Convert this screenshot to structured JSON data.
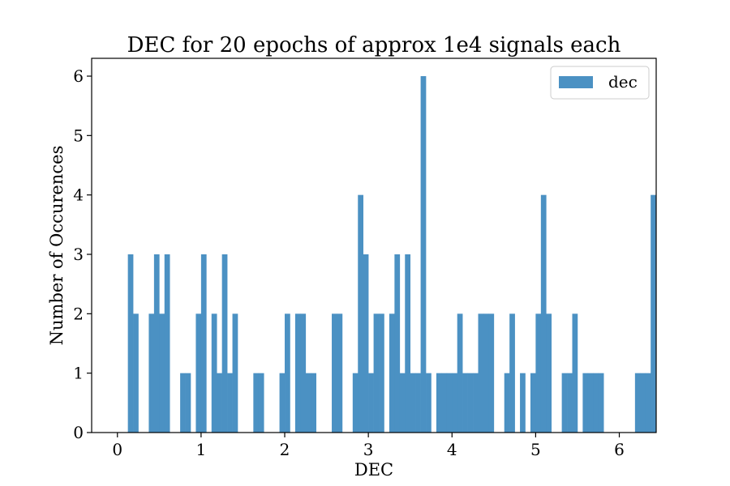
{
  "chart_data": {
    "type": "bar",
    "title": "DEC for 20 epochs of approx 1e4 signals each",
    "xlabel": "DEC",
    "ylabel": "Number of Occurences",
    "xlim": [
      -0.308,
      6.441
    ],
    "ylim": [
      0,
      6.3
    ],
    "xticks": [
      0,
      1,
      2,
      3,
      4,
      5,
      6
    ],
    "yticks": [
      0,
      1,
      2,
      3,
      4,
      5,
      6
    ],
    "xtick_labels": [
      "0",
      "1",
      "2",
      "3",
      "4",
      "5",
      "6"
    ],
    "ytick_labels": [
      "0",
      "1",
      "2",
      "3",
      "4",
      "5",
      "6"
    ],
    "grid": false,
    "legend": {
      "position": "top-right",
      "entries": [
        "dec"
      ]
    },
    "bin_start": 0.0,
    "bin_width": 0.0625,
    "series": [
      {
        "name": "dec",
        "color": "#4b91c3",
        "counts": [
          0,
          0,
          3,
          2,
          0,
          0,
          2,
          3,
          2,
          3,
          0,
          0,
          1,
          1,
          0,
          2,
          3,
          0,
          2,
          1,
          3,
          1,
          2,
          0,
          0,
          0,
          1,
          1,
          0,
          0,
          0,
          1,
          2,
          0,
          2,
          2,
          1,
          1,
          0,
          0,
          0,
          2,
          2,
          0,
          0,
          1,
          4,
          3,
          1,
          2,
          2,
          0,
          2,
          3,
          1,
          3,
          1,
          1,
          6,
          1,
          0,
          1,
          1,
          1,
          1,
          2,
          1,
          1,
          1,
          2,
          2,
          2,
          0,
          0,
          1,
          2,
          0,
          1,
          0,
          1,
          2,
          4,
          2,
          0,
          0,
          1,
          1,
          2,
          0,
          1,
          1,
          1,
          1,
          0,
          0,
          0,
          0,
          0,
          0,
          1,
          1,
          1,
          4
        ]
      }
    ]
  }
}
